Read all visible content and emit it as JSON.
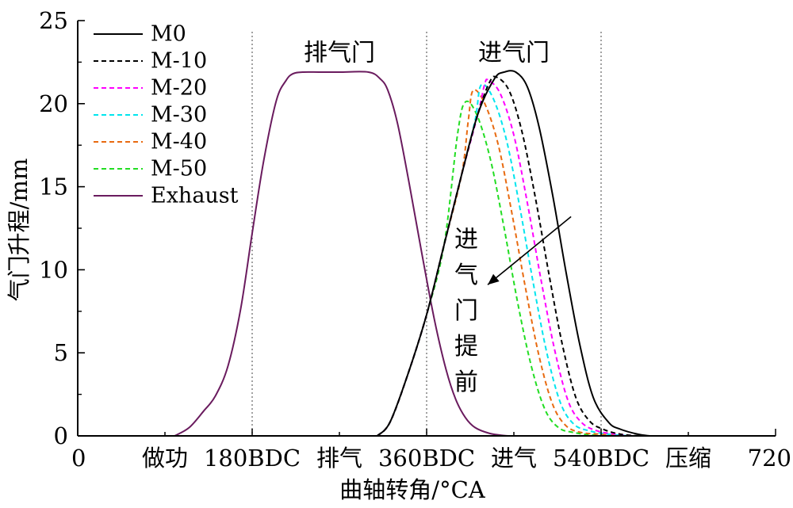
{
  "chart_data": {
    "type": "line",
    "title": "",
    "xlabel": "曲轴转角/°CA",
    "ylabel": "气门升程/mm",
    "xlim": [
      0,
      720
    ],
    "ylim": [
      0,
      25
    ],
    "x_ticks": [
      {
        "x": 0,
        "label": "0"
      },
      {
        "x": 180,
        "label": "180BDC"
      },
      {
        "x": 360,
        "label": "360BDC"
      },
      {
        "x": 540,
        "label": "540BDC"
      },
      {
        "x": 720,
        "label": "720"
      }
    ],
    "x_stroke_labels": [
      {
        "x": 90,
        "label": "做功"
      },
      {
        "x": 270,
        "label": "排气"
      },
      {
        "x": 450,
        "label": "进气"
      },
      {
        "x": 630,
        "label": "压缩"
      }
    ],
    "y_ticks": [
      0,
      5,
      10,
      15,
      20,
      25
    ],
    "vlines": [
      180,
      360,
      540
    ],
    "grid": false,
    "legend_position": "top-left",
    "annotations": [
      {
        "text": "排气门",
        "x": 270,
        "y": 22.6
      },
      {
        "text": "进气门",
        "x": 450,
        "y": 22.6
      }
    ],
    "arrow_annotation": {
      "text": "进气门提前",
      "from": {
        "x": 509,
        "y": 13.2
      },
      "to": {
        "x": 423,
        "y": 9.1
      }
    },
    "series": [
      {
        "name": "M0",
        "color": "#000000",
        "dash": "solid",
        "x": [
          309,
          322,
          340,
          360,
          378,
          396,
          413,
          430,
          440,
          452,
          464,
          476,
          490,
          504,
          518,
          532,
          548,
          560,
          578,
          590
        ],
        "y": [
          0,
          0.8,
          3.6,
          7.3,
          11.5,
          15.7,
          19.4,
          21.5,
          21.9,
          21.9,
          21.0,
          18.6,
          14.5,
          9.8,
          5.5,
          2.3,
          0.8,
          0.4,
          0.1,
          0
        ]
      },
      {
        "name": "M-10",
        "color": "#000000",
        "dash": "dashed",
        "x": [
          309,
          322,
          340,
          360,
          378,
          396,
          413,
          425,
          432,
          445,
          458,
          472,
          486,
          500,
          514,
          528,
          542,
          560,
          580
        ],
        "y": [
          0,
          0.8,
          3.6,
          7.3,
          11.5,
          15.7,
          19.4,
          21.3,
          21.6,
          20.8,
          18.4,
          14.4,
          9.8,
          5.5,
          2.3,
          0.9,
          0.4,
          0.1,
          0
        ]
      },
      {
        "name": "M-20",
        "color": "#ff00ff",
        "dash": "dashed",
        "x": [
          309,
          322,
          340,
          360,
          378,
          396,
          413,
          420,
          424,
          436,
          450,
          464,
          478,
          492,
          506,
          520,
          536,
          556,
          575
        ],
        "y": [
          0,
          0.8,
          3.6,
          7.3,
          11.5,
          15.7,
          19.4,
          21.2,
          21.4,
          20.6,
          18.1,
          14.0,
          9.4,
          5.2,
          2.1,
          0.8,
          0.3,
          0.1,
          0
        ]
      },
      {
        "name": "M-30",
        "color": "#00e5ee",
        "dash": "dashed",
        "x": [
          309,
          322,
          340,
          360,
          378,
          396,
          410,
          416,
          428,
          442,
          456,
          470,
          484,
          498,
          512,
          528,
          548,
          570
        ],
        "y": [
          0,
          0.8,
          3.6,
          7.3,
          11.5,
          15.7,
          19.0,
          21.1,
          20.4,
          17.9,
          13.8,
          9.2,
          5.0,
          2.0,
          0.7,
          0.3,
          0.1,
          0
        ]
      },
      {
        "name": "M-40",
        "color": "#e86a10",
        "dash": "dashed",
        "x": [
          309,
          322,
          340,
          360,
          378,
          396,
          403,
          408,
          420,
          434,
          448,
          462,
          476,
          490,
          504,
          520,
          540,
          565
        ],
        "y": [
          0,
          0.8,
          3.6,
          7.3,
          11.5,
          15.7,
          19.0,
          20.8,
          20.0,
          17.5,
          13.4,
          8.9,
          4.8,
          1.9,
          0.6,
          0.2,
          0.1,
          0
        ]
      },
      {
        "name": "M-50",
        "color": "#22dd22",
        "dash": "dashed",
        "x": [
          309,
          322,
          340,
          360,
          378,
          392,
          400,
          412,
          426,
          440,
          454,
          468,
          482,
          496,
          512,
          532,
          560
        ],
        "y": [
          0,
          0.8,
          3.6,
          7.3,
          11.5,
          18.2,
          20.1,
          19.3,
          16.6,
          12.5,
          8.0,
          4.2,
          1.6,
          0.5,
          0.2,
          0.05,
          0
        ]
      },
      {
        "name": "Exhaust",
        "color": "#6a1b5e",
        "dash": "solid",
        "x": [
          100,
          115,
          130,
          142,
          155,
          168,
          180,
          192,
          205,
          215,
          222,
          232,
          250,
          270,
          300,
          312,
          320,
          330,
          342,
          355,
          368,
          380,
          390,
          400,
          410,
          425,
          440,
          445
        ],
        "y": [
          0,
          0.5,
          1.5,
          2.4,
          4.2,
          7.6,
          12.2,
          16.6,
          20.2,
          21.4,
          21.8,
          21.9,
          21.9,
          21.9,
          21.9,
          21.5,
          20.8,
          18.8,
          15.2,
          11.0,
          7.0,
          4.0,
          2.2,
          1.1,
          0.5,
          0.15,
          0.02,
          0
        ]
      }
    ]
  }
}
